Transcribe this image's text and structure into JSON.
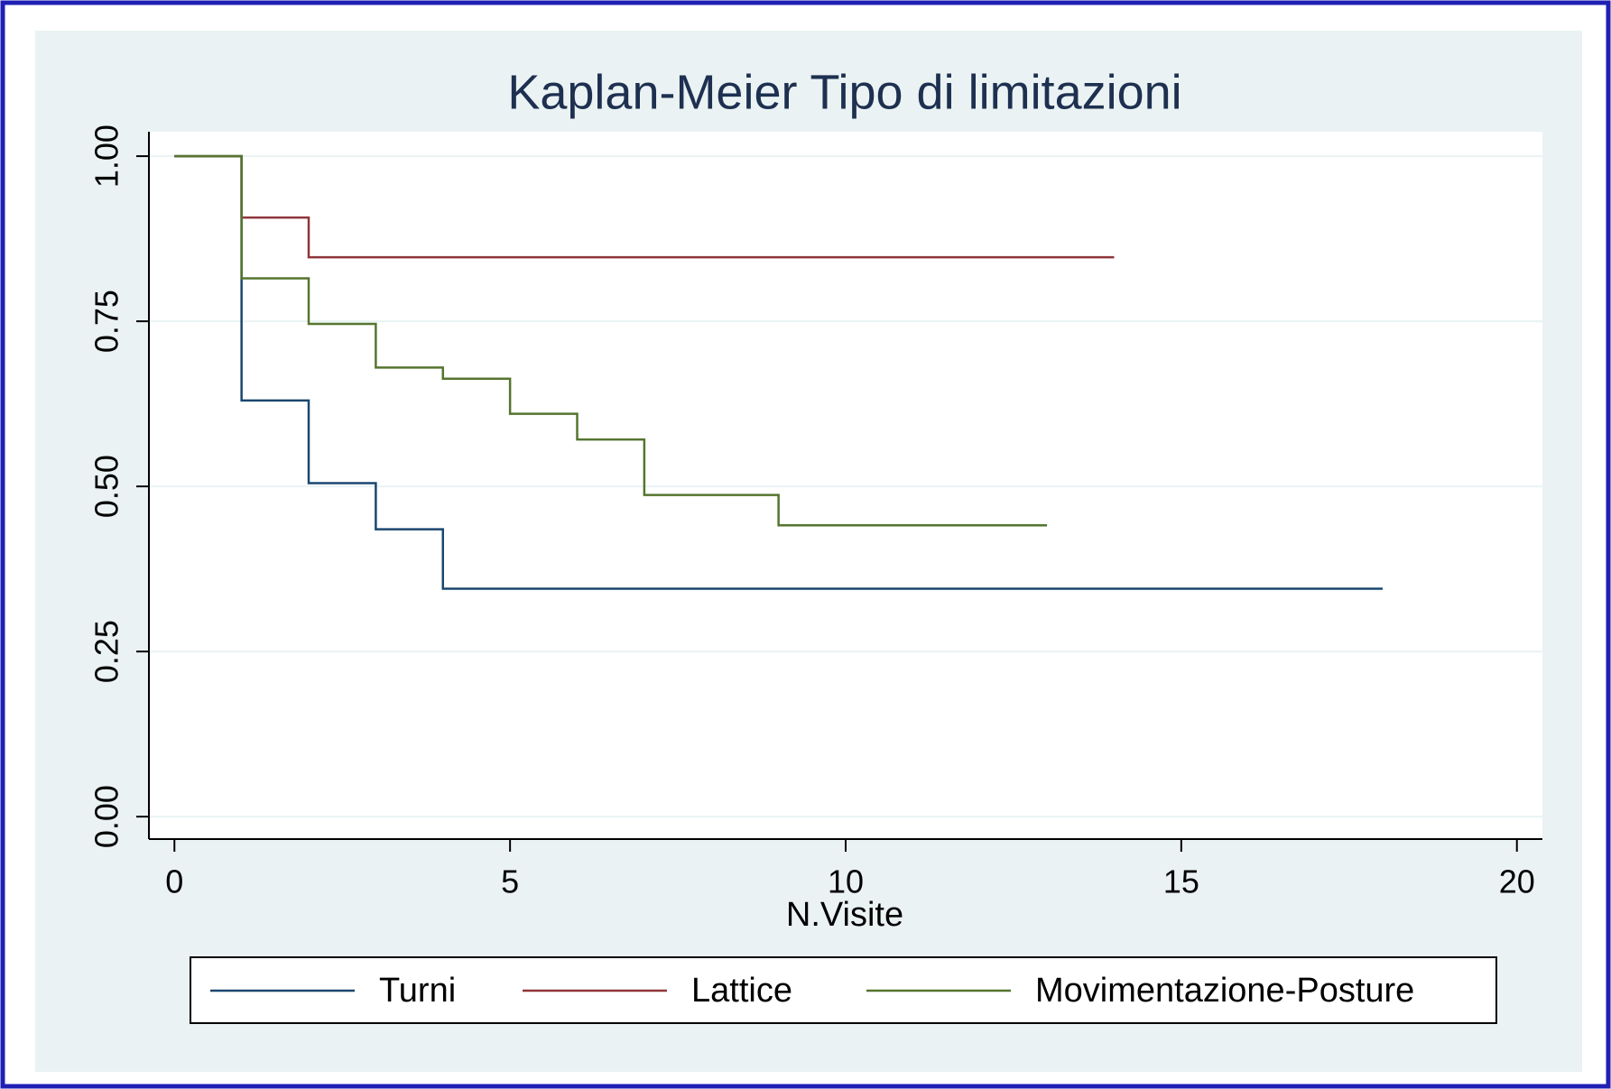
{
  "chart_data": {
    "type": "step",
    "title": "Kaplan-Meier Tipo di limitazioni",
    "x_label": "N.Visite",
    "xlim": [
      -0.38,
      20.38
    ],
    "xticks": [
      0,
      5,
      10,
      15,
      20
    ],
    "ylim": [
      -0.034,
      1.037
    ],
    "yticks": [
      {
        "value": 0,
        "label": "0.00"
      },
      {
        "value": 0.25,
        "label": "0.25"
      },
      {
        "value": 0.5,
        "label": "0.50"
      },
      {
        "value": 0.75,
        "label": "0.75"
      },
      {
        "value": 1,
        "label": "1.00"
      }
    ],
    "grid": true,
    "series": [
      {
        "name": "Turni",
        "color": "#1a476f",
        "x": [
          0,
          1,
          2,
          3,
          4,
          18
        ],
        "values": [
          1,
          0.63,
          0.505,
          0.435,
          0.345,
          0.345
        ]
      },
      {
        "name": "Lattice",
        "color": "#90353b",
        "x": [
          0,
          1,
          2,
          14
        ],
        "values": [
          1,
          0.907,
          0.847,
          0.847
        ]
      },
      {
        "name": "Movimentazione-Posture",
        "color": "#55752f",
        "x": [
          0,
          1,
          2,
          3,
          4,
          5,
          6,
          7,
          9,
          13
        ],
        "values": [
          1,
          0.815,
          0.746,
          0.68,
          0.663,
          0.61,
          0.571,
          0.487,
          0.441,
          0.441
        ]
      }
    ]
  }
}
